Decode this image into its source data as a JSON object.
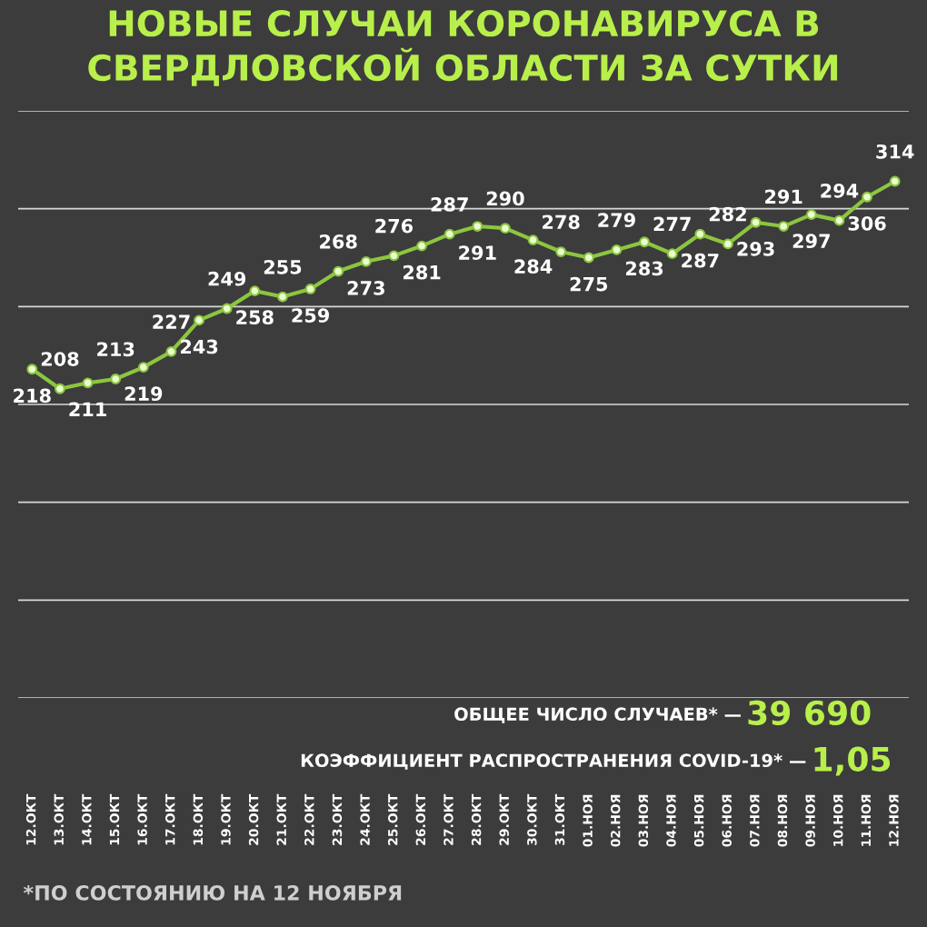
{
  "chart_data": {
    "type": "line",
    "title": "НОВЫЕ СЛУЧАИ КОРОНАВИРУСА В СВЕРДЛОВСКОЙ ОБЛАСТИ ЗА СУТКИ",
    "categories": [
      "12.ОКТ",
      "13.ОКТ",
      "14.ОКТ",
      "15.ОКТ",
      "16.ОКТ",
      "17.ОКТ",
      "18.ОКТ",
      "19.ОКТ",
      "20.ОКТ",
      "21.ОКТ",
      "22.ОКТ",
      "23.ОКТ",
      "24.ОКТ",
      "25.ОКТ",
      "26.ОКТ",
      "27.ОКТ",
      "28.ОКТ",
      "29.ОКТ",
      "30.ОКТ",
      "31.ОКТ",
      "01.НОЯ",
      "02.НОЯ",
      "03.НОЯ",
      "04.НОЯ",
      "05.НОЯ",
      "06.НОЯ",
      "07.НОЯ",
      "08.НОЯ",
      "09.НОЯ",
      "10.НОЯ",
      "11.НОЯ",
      "12.НОЯ"
    ],
    "series": [
      {
        "color": "#8cc63f",
        "values": [
          218,
          208,
          211,
          213,
          219,
          227,
          243,
          249,
          258,
          255,
          259,
          268,
          273,
          276,
          281,
          287,
          291,
          290,
          284,
          278,
          275,
          279,
          283,
          277,
          287,
          282,
          293,
          291,
          297,
          294,
          306,
          314
        ]
      }
    ],
    "ylim": [
      50,
      350
    ],
    "yticks": [
      {
        "value": 50,
        "label": null
      },
      {
        "value": 100,
        "label": null
      },
      {
        "value": 150,
        "label": null
      },
      {
        "value": 200,
        "label": null
      },
      {
        "value": 250,
        "label": null
      },
      {
        "value": 300,
        "label": null
      },
      {
        "value": 350,
        "label": null
      }
    ],
    "tick_labels": "x",
    "grid": "y",
    "marker": "circle",
    "line_style": "solid",
    "data_labels": true,
    "annotations": [
      "ОБЩЕЕ ЧИСЛО СЛУЧАЕВ* —",
      "39 690",
      "КОЭФФИЦИЕНТ РАСПРОСТРАНЕНИЯ COVID-19* —",
      "1,05",
      "*ПО СОСТОЯНИЮ НА 12 НОЯБРЯ"
    ]
  }
}
